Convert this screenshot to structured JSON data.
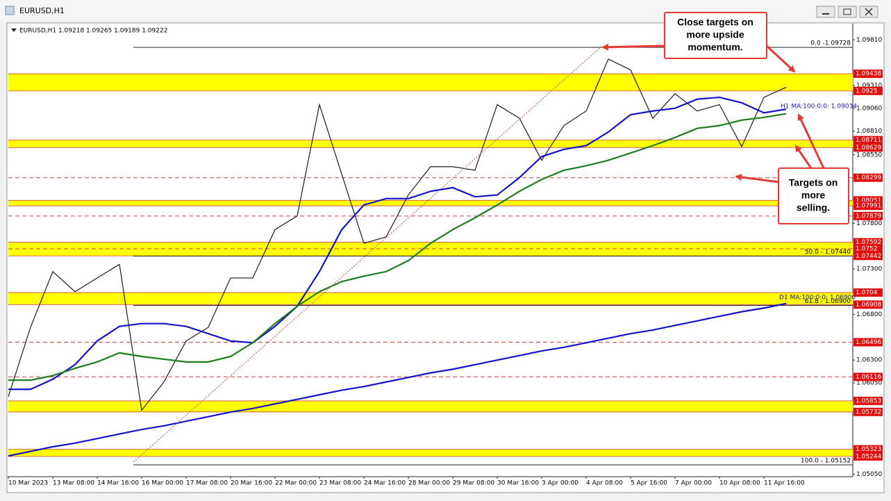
{
  "window": {
    "title": "EURUSD,H1"
  },
  "chart_data": {
    "type": "line",
    "info": "EURUSD,H1  1.09218 1.09265 1.09189 1.09222",
    "categories": [
      "10 Mar 2023",
      null,
      "13 Mar 08:00",
      null,
      "14 Mar 16:00",
      null,
      "16 Mar 00:00",
      null,
      "17 Mar 08:00",
      null,
      "20 Mar 16:00",
      null,
      "22 Mar 00:00",
      null,
      "23 Mar 08:00",
      null,
      "24 Mar 16:00",
      null,
      "28 Mar 00:00",
      null,
      "29 Mar 08:00",
      null,
      "30 Mar 16:00",
      null,
      "3 Apr 00:00",
      null,
      "4 Apr 08:00",
      null,
      "5 Apr 16:00",
      null,
      "7 Apr 00:00",
      null,
      "10 Apr 08:00",
      null,
      "11 Apr 16:00",
      null
    ],
    "series": [
      {
        "color": "#1b1b1b",
        "values": [
          1.059,
          1.0666,
          1.0727,
          1.0705,
          1.072,
          1.0735,
          1.0575,
          1.0606,
          1.0651,
          1.0666,
          1.072,
          1.072,
          1.0773,
          1.0788,
          1.091,
          1.0834,
          1.0758,
          1.0765,
          1.0811,
          1.0842,
          1.0842,
          1.0838,
          1.091,
          1.0895,
          1.0849,
          1.0887,
          1.0903,
          1.096,
          1.0948,
          1.0895,
          1.0922,
          1.0903,
          1.091,
          1.0864,
          1.0918,
          1.0929
        ]
      },
      {
        "color": "#1414c8",
        "values": [
          1.0598,
          1.0598,
          1.0609,
          1.0625,
          1.0651,
          1.0667,
          1.067,
          1.067,
          1.0667,
          1.0659,
          1.0651,
          1.0649,
          1.0667,
          1.0689,
          1.0727,
          1.0773,
          1.08,
          1.0807,
          1.0807,
          1.0815,
          1.0819,
          1.0809,
          1.0811,
          1.083,
          1.0853,
          1.0861,
          1.0865,
          1.088,
          1.0899,
          1.0903,
          1.0906,
          1.0916,
          1.0918,
          1.0912,
          1.0901,
          1.0905
        ]
      },
      {
        "color": "#1e7d1e",
        "values": [
          1.0608,
          1.0608,
          1.0613,
          1.0621,
          1.0628,
          1.0638,
          1.0634,
          1.0631,
          1.0628,
          1.0628,
          1.0634,
          1.0649,
          1.067,
          1.0689,
          1.0705,
          1.0716,
          1.0722,
          1.0727,
          1.0739,
          1.0758,
          1.0773,
          1.0786,
          1.08,
          1.0815,
          1.0828,
          1.0838,
          1.0843,
          1.0849,
          1.0857,
          1.0865,
          1.0874,
          1.0884,
          1.0887,
          1.0893,
          1.0896,
          1.09
        ]
      },
      {
        "color": "#1414c8",
        "values": [
          1.0525,
          1.053,
          1.0535,
          1.0539,
          1.0544,
          1.0549,
          1.0554,
          1.0558,
          1.0563,
          1.0568,
          1.0573,
          1.0577,
          1.0582,
          1.0587,
          1.0592,
          1.0597,
          1.0601,
          1.0606,
          1.0611,
          1.0616,
          1.062,
          1.0625,
          1.063,
          1.0635,
          1.064,
          1.0644,
          1.0649,
          1.0654,
          1.0659,
          1.0663,
          1.0668,
          1.0673,
          1.0678,
          1.0683,
          1.0687,
          1.0692
        ]
      }
    ],
    "ylim": [
      1.0503,
      1.0998
    ],
    "yticks": [
      {
        "value": 1.0981,
        "label": "1.09810"
      },
      {
        "value": 1.0931,
        "label": "1.09310"
      },
      {
        "value": 1.0906,
        "label": "1.09060"
      },
      {
        "value": 1.0881,
        "label": "1.08810"
      },
      {
        "value": 1.0855,
        "label": "1.08550"
      },
      {
        "value": 1.078,
        "label": "1.07800"
      },
      {
        "value": 1.073,
        "label": "1.07300"
      },
      {
        "value": 1.068,
        "label": "1.06800"
      },
      {
        "value": 1.063,
        "label": "1.06300"
      },
      {
        "value": 1.0605,
        "label": "1.06050"
      },
      {
        "value": 1.0505,
        "label": "1.05050"
      }
    ],
    "zones": [
      {
        "high": 1.09438,
        "low": 1.0925
      },
      {
        "high": 1.08711,
        "low": 1.08629
      },
      {
        "high": 1.08051,
        "low": 1.07991
      },
      {
        "high": 1.07592,
        "low": 1.07442
      },
      {
        "high": 1.0704,
        "low": 1.06908
      },
      {
        "high": 1.05853,
        "low": 1.05732
      },
      {
        "high": 1.05323,
        "low": 1.05244
      }
    ],
    "levels": [
      1.08299,
      1.07879,
      1.0752,
      1.06496,
      1.06116
    ],
    "fib": [
      {
        "value": 1.09728,
        "label": "0.0 -1.09728"
      },
      {
        "value": 1.0744,
        "label": "50.0 - 1.07440"
      },
      {
        "value": 1.069,
        "label": "61.8 - 1.06900"
      },
      {
        "value": 1.05152,
        "label": "100.0 - 1.05152"
      }
    ],
    "ma_labels": [
      "H1 MA:100:0:0: 1.09034",
      "D1 MA:100:0:0: 1.06900"
    ],
    "annotations": [
      {
        "lines": [
          "Close targets on",
          "more upside",
          "momentum."
        ]
      },
      {
        "lines": [
          "Targets on",
          "more",
          "selling."
        ]
      }
    ]
  }
}
